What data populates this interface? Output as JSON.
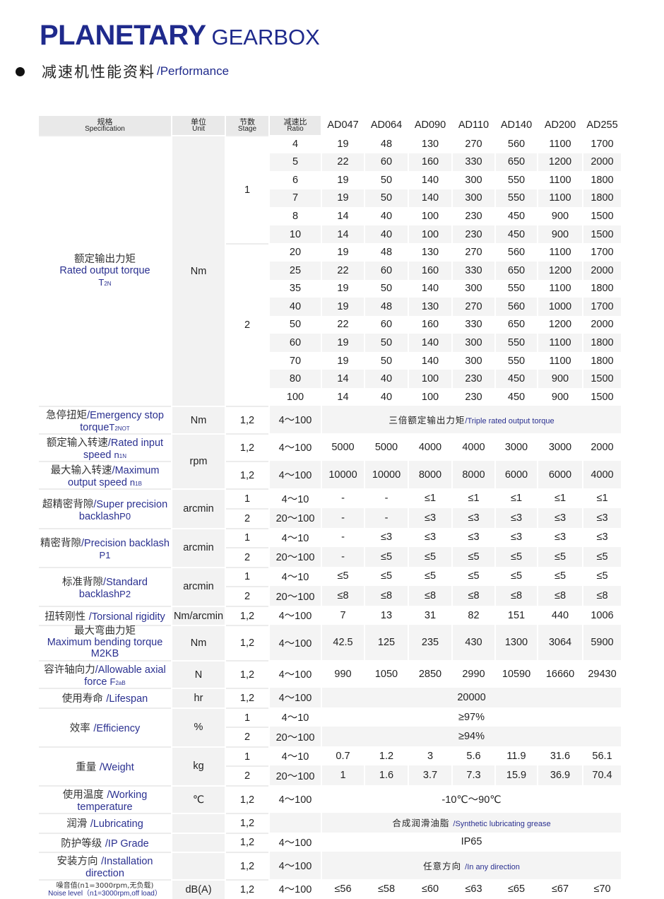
{
  "header": {
    "title_bold": "PLANETARY",
    "title_light": "GEARBOX",
    "subtitle_cn": "减速机性能资料",
    "subtitle_en": "/Performance"
  },
  "colors": {
    "brand": "#1f2a8c",
    "row_shade": "#f4f4f4",
    "unit_shade": "#f2f2f2"
  },
  "table": {
    "headers": [
      {
        "cn": "规格",
        "en": "Specification"
      },
      {
        "cn": "单位",
        "en": "Unit"
      },
      {
        "cn": "节数",
        "en": "Stage"
      },
      {
        "cn": "减速比",
        "en": "Ratio"
      }
    ],
    "models": [
      "AD047",
      "AD064",
      "AD090",
      "AD110",
      "AD140",
      "AD200",
      "AD255"
    ],
    "groups": [
      {
        "cn": "额定输出力矩",
        "en": "Rated output torque",
        "sym": "T",
        "sub": "2N",
        "stacked": true,
        "unit": "Nm",
        "stages": [
          {
            "stage": "1",
            "rows": [
              {
                "ratio": "4",
                "values": [
                  "19",
                  "48",
                  "130",
                  "270",
                  "560",
                  "1100",
                  "1700"
                ]
              },
              {
                "ratio": "5",
                "values": [
                  "22",
                  "60",
                  "160",
                  "330",
                  "650",
                  "1200",
                  "2000"
                ]
              },
              {
                "ratio": "6",
                "values": [
                  "19",
                  "50",
                  "140",
                  "300",
                  "550",
                  "1100",
                  "1800"
                ]
              },
              {
                "ratio": "7",
                "values": [
                  "19",
                  "50",
                  "140",
                  "300",
                  "550",
                  "1100",
                  "1800"
                ]
              },
              {
                "ratio": "8",
                "values": [
                  "14",
                  "40",
                  "100",
                  "230",
                  "450",
                  "900",
                  "1500"
                ]
              },
              {
                "ratio": "10",
                "values": [
                  "14",
                  "40",
                  "100",
                  "230",
                  "450",
                  "900",
                  "1500"
                ]
              }
            ]
          },
          {
            "stage": "2",
            "rows": [
              {
                "ratio": "20",
                "values": [
                  "19",
                  "48",
                  "130",
                  "270",
                  "560",
                  "1100",
                  "1700"
                ]
              },
              {
                "ratio": "25",
                "values": [
                  "22",
                  "60",
                  "160",
                  "330",
                  "650",
                  "1200",
                  "2000"
                ]
              },
              {
                "ratio": "35",
                "values": [
                  "19",
                  "50",
                  "140",
                  "300",
                  "550",
                  "1100",
                  "1800"
                ]
              },
              {
                "ratio": "40",
                "values": [
                  "19",
                  "48",
                  "130",
                  "270",
                  "560",
                  "1000",
                  "1700"
                ]
              },
              {
                "ratio": "50",
                "values": [
                  "22",
                  "60",
                  "160",
                  "330",
                  "650",
                  "1200",
                  "2000"
                ]
              },
              {
                "ratio": "60",
                "values": [
                  "19",
                  "50",
                  "140",
                  "300",
                  "550",
                  "1100",
                  "1800"
                ]
              },
              {
                "ratio": "70",
                "values": [
                  "19",
                  "50",
                  "140",
                  "300",
                  "550",
                  "1100",
                  "1800"
                ]
              },
              {
                "ratio": "80",
                "values": [
                  "14",
                  "40",
                  "100",
                  "230",
                  "450",
                  "900",
                  "1500"
                ]
              },
              {
                "ratio": "100",
                "values": [
                  "14",
                  "40",
                  "100",
                  "230",
                  "450",
                  "900",
                  "1500"
                ]
              }
            ]
          }
        ]
      },
      {
        "cn": "急停扭矩",
        "en": "/Emergency stop torque",
        "sym": "T",
        "sub": "2NOT",
        "unit": "Nm",
        "stages": [
          {
            "stage": "1,2",
            "rows": [
              {
                "ratio": "4～100",
                "merged_cn": "三倍额定输出力矩",
                "merged_en": "/Triple rated output torque"
              }
            ]
          }
        ]
      },
      {
        "cn": "额定输入转速",
        "en": "/Rated input speed ",
        "sym": "n",
        "sub": "1N",
        "unit": "rpm",
        "unit_span": 2,
        "stages": [
          {
            "stage": "1,2",
            "rows": [
              {
                "ratio": "4～100",
                "values": [
                  "5000",
                  "5000",
                  "4000",
                  "4000",
                  "3000",
                  "3000",
                  "2000"
                ]
              }
            ]
          }
        ]
      },
      {
        "cn": "最大输入转速",
        "en": "/Maximum output speed ",
        "sym": "n",
        "sub": "1B",
        "unit_merged": true,
        "stages": [
          {
            "stage": "1,2",
            "rows": [
              {
                "ratio": "4～100",
                "values": [
                  "10000",
                  "10000",
                  "8000",
                  "8000",
                  "6000",
                  "6000",
                  "4000"
                ]
              }
            ]
          }
        ]
      },
      {
        "cn": "超精密背隙",
        "en": "/Super precision backlash",
        "sym": "P0",
        "sub": "",
        "unit": "arcmin",
        "stages": [
          {
            "stage": "1",
            "rows": [
              {
                "ratio": "4～10",
                "values": [
                  "-",
                  "-",
                  "≤1",
                  "≤1",
                  "≤1",
                  "≤1",
                  "≤1"
                ]
              }
            ]
          },
          {
            "stage": "2",
            "rows": [
              {
                "ratio": "20～100",
                "values": [
                  "-",
                  "-",
                  "≤3",
                  "≤3",
                  "≤3",
                  "≤3",
                  "≤3"
                ]
              }
            ]
          }
        ]
      },
      {
        "cn": "精密背隙",
        "en": "/Precision backlash ",
        "sym": "P1",
        "sub": "",
        "unit": "arcmin",
        "stages": [
          {
            "stage": "1",
            "rows": [
              {
                "ratio": "4～10",
                "values": [
                  "-",
                  "≤3",
                  "≤3",
                  "≤3",
                  "≤3",
                  "≤3",
                  "≤3"
                ]
              }
            ]
          },
          {
            "stage": "2",
            "rows": [
              {
                "ratio": "20～100",
                "values": [
                  "-",
                  "≤5",
                  "≤5",
                  "≤5",
                  "≤5",
                  "≤5",
                  "≤5"
                ]
              }
            ]
          }
        ]
      },
      {
        "cn": "标准背隙",
        "en": "/Standard backlash",
        "sym": "P2",
        "sub": "",
        "unit": "arcmin",
        "stages": [
          {
            "stage": "1",
            "rows": [
              {
                "ratio": "4～10",
                "values": [
                  "≤5",
                  "≤5",
                  "≤5",
                  "≤5",
                  "≤5",
                  "≤5",
                  "≤5"
                ]
              }
            ]
          },
          {
            "stage": "2",
            "rows": [
              {
                "ratio": "20～100",
                "values": [
                  "≤8",
                  "≤8",
                  "≤8",
                  "≤8",
                  "≤8",
                  "≤8",
                  "≤8"
                ]
              }
            ]
          }
        ]
      },
      {
        "cn": "扭转刚性 ",
        "en": "/Torsional rigidity",
        "unit": "Nm/arcmin",
        "stages": [
          {
            "stage": "1,2",
            "rows": [
              {
                "ratio": "4～100",
                "values": [
                  "7",
                  "13",
                  "31",
                  "82",
                  "151",
                  "440",
                  "1006"
                ]
              }
            ]
          }
        ]
      },
      {
        "cn": "最大弯曲力矩",
        "en": "Maximum bending torque  M2KB",
        "stacked": true,
        "unit": "Nm",
        "stages": [
          {
            "stage": "1,2",
            "rows": [
              {
                "ratio": "4～100",
                "values": [
                  "42.5",
                  "125",
                  "235",
                  "430",
                  "1300",
                  "3064",
                  "5900"
                ]
              }
            ]
          }
        ]
      },
      {
        "cn": "容许轴向力",
        "en": "/Allowable axial force ",
        "sym": "F",
        "sub": "2aB",
        "unit": "N",
        "stages": [
          {
            "stage": "1,2",
            "rows": [
              {
                "ratio": "4～100",
                "values": [
                  "990",
                  "1050",
                  "2850",
                  "2990",
                  "10590",
                  "16660",
                  "29430"
                ]
              }
            ]
          }
        ]
      },
      {
        "cn": "使用寿命 ",
        "en": "/Lifespan",
        "unit": "hr",
        "stages": [
          {
            "stage": "1,2",
            "rows": [
              {
                "ratio": "4～100",
                "merged": "20000"
              }
            ]
          }
        ]
      },
      {
        "cn": "效率 ",
        "en": "/Efficiency",
        "unit": "%",
        "stages": [
          {
            "stage": "1",
            "rows": [
              {
                "ratio": "4～10",
                "merged": "≥97%"
              }
            ]
          },
          {
            "stage": "2",
            "rows": [
              {
                "ratio": "20～100",
                "merged": "≥94%"
              }
            ]
          }
        ]
      },
      {
        "cn": "重量 ",
        "en": "/Weight",
        "unit": "kg",
        "stages": [
          {
            "stage": "1",
            "rows": [
              {
                "ratio": "4～10",
                "values": [
                  "0.7",
                  "1.2",
                  "3",
                  "5.6",
                  "11.9",
                  "31.6",
                  "56.1"
                ]
              }
            ]
          },
          {
            "stage": "2",
            "rows": [
              {
                "ratio": "20～100",
                "values": [
                  "1",
                  "1.6",
                  "3.7",
                  "7.3",
                  "15.9",
                  "36.9",
                  "70.4"
                ]
              }
            ]
          }
        ]
      },
      {
        "cn": "使用温度 ",
        "en": "/Working temperature",
        "unit": "℃",
        "stages": [
          {
            "stage": "1,2",
            "rows": [
              {
                "ratio": "4～100",
                "merged": "-10℃～90℃"
              }
            ]
          }
        ]
      },
      {
        "cn": "润滑 ",
        "en": "/Lubricating",
        "unit": "",
        "stages": [
          {
            "stage": "1,2",
            "rows": [
              {
                "ratio": "",
                "merged_cn": "合成润滑油脂 ",
                "merged_en": "/Synthetic lubricating grease"
              }
            ]
          }
        ]
      },
      {
        "cn": "防护等级 ",
        "en": "/IP Grade",
        "unit": "",
        "stages": [
          {
            "stage": "1,2",
            "rows": [
              {
                "ratio": "4～100",
                "merged": "IP65"
              }
            ]
          }
        ]
      },
      {
        "cn": "安装方向 ",
        "en": "/Installation direction",
        "unit": "",
        "stages": [
          {
            "stage": "1,2",
            "rows": [
              {
                "ratio": "4～100",
                "merged_cn": "任意方向 ",
                "merged_en": "/In any direction"
              }
            ]
          }
        ]
      },
      {
        "cn": "噪音值(n1=3000rpm,无负载)",
        "en": "Noise level（n1=3000rpm,off load）",
        "stacked": true,
        "small": true,
        "unit": "dB(A)",
        "stages": [
          {
            "stage": "1,2",
            "rows": [
              {
                "ratio": "4～100",
                "values": [
                  "≤56",
                  "≤58",
                  "≤60",
                  "≤63",
                  "≤65",
                  "≤67",
                  "≤70"
                ]
              }
            ]
          }
        ]
      }
    ]
  }
}
